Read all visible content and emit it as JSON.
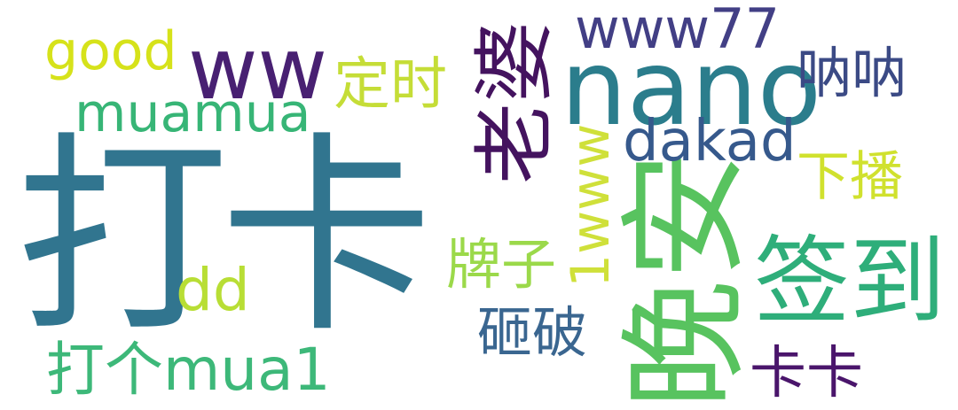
{
  "words": [
    {
      "key": "daka",
      "text": "打卡",
      "color": "#31758f"
    },
    {
      "key": "nano",
      "text": "nano",
      "color": "#2b7d8c"
    },
    {
      "key": "ww",
      "text": "ww",
      "color": "#482072"
    },
    {
      "key": "wanan",
      "text": "晚安",
      "color": "#58c35f"
    },
    {
      "key": "qiandao",
      "text": "签到",
      "color": "#2eae7a"
    },
    {
      "key": "laopo",
      "text": "老婆",
      "color": "#44135f"
    },
    {
      "key": "www77",
      "text": "www77",
      "color": "#423f85"
    },
    {
      "key": "good",
      "text": "good",
      "color": "#d6e21a"
    },
    {
      "key": "muamua",
      "text": "muamua",
      "color": "#37b576"
    },
    {
      "key": "dingshi",
      "text": "定时",
      "color": "#c5dd37"
    },
    {
      "key": "nana",
      "text": "呐呐",
      "color": "#3b4a85"
    },
    {
      "key": "dakad",
      "text": "dakad",
      "color": "#36598c"
    },
    {
      "key": "xiabo",
      "text": "下播",
      "color": "#d0e12e"
    },
    {
      "key": "1www",
      "text": "1www",
      "color": "#cfe03a"
    },
    {
      "key": "paizi",
      "text": "牌子",
      "color": "#9bd94a"
    },
    {
      "key": "dd",
      "text": "dd",
      "color": "#b8de35"
    },
    {
      "key": "zapo",
      "text": "砸破",
      "color": "#3a6690"
    },
    {
      "key": "dagemua1",
      "text": "打个mua1",
      "color": "#3db879"
    },
    {
      "key": "kaka",
      "text": "卡卡",
      "color": "#4a156b"
    }
  ]
}
